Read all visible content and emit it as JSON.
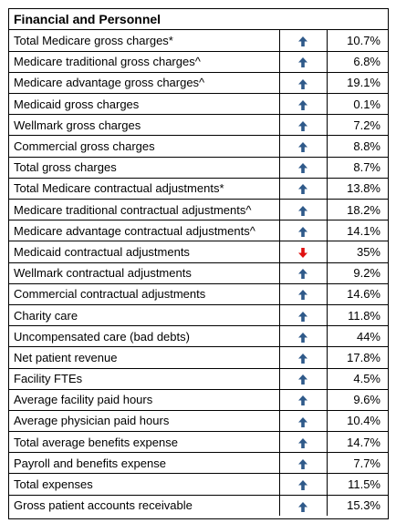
{
  "title": "Financial and Personnel",
  "colors": {
    "up": "#2f5a8a",
    "down": "#e01010"
  },
  "rows": [
    {
      "label": "Total Medicare gross charges*",
      "dir": "up",
      "value": "10.7%"
    },
    {
      "label": "Medicare traditional gross charges^",
      "dir": "up",
      "value": "6.8%"
    },
    {
      "label": "Medicare advantage gross charges^",
      "dir": "up",
      "value": "19.1%"
    },
    {
      "label": "Medicaid gross charges",
      "dir": "up",
      "value": "0.1%"
    },
    {
      "label": "Wellmark gross charges",
      "dir": "up",
      "value": "7.2%"
    },
    {
      "label": "Commercial gross charges",
      "dir": "up",
      "value": "8.8%"
    },
    {
      "label": "Total gross charges",
      "dir": "up",
      "value": "8.7%"
    },
    {
      "label": "Total Medicare contractual adjustments*",
      "dir": "up",
      "value": "13.8%"
    },
    {
      "label": "Medicare traditional contractual adjustments^",
      "dir": "up",
      "value": "18.2%"
    },
    {
      "label": "Medicare advantage contractual adjustments^",
      "dir": "up",
      "value": "14.1%"
    },
    {
      "label": "Medicaid contractual adjustments",
      "dir": "down",
      "value": "35%"
    },
    {
      "label": "Wellmark contractual adjustments",
      "dir": "up",
      "value": "9.2%"
    },
    {
      "label": "Commercial contractual adjustments",
      "dir": "up",
      "value": "14.6%"
    },
    {
      "label": "Charity care",
      "dir": "up",
      "value": "11.8%"
    },
    {
      "label": "Uncompensated care (bad debts)",
      "dir": "up",
      "value": "44%"
    },
    {
      "label": "Net patient revenue",
      "dir": "up",
      "value": "17.8%"
    },
    {
      "label": "Facility FTEs",
      "dir": "up",
      "value": "4.5%"
    },
    {
      "label": "Average facility paid hours",
      "dir": "up",
      "value": "9.6%"
    },
    {
      "label": "Average physician paid hours",
      "dir": "up",
      "value": "10.4%"
    },
    {
      "label": "Total average benefits expense",
      "dir": "up",
      "value": "14.7%"
    },
    {
      "label": "Payroll and benefits expense",
      "dir": "up",
      "value": "7.7%"
    },
    {
      "label": "Total expenses",
      "dir": "up",
      "value": "11.5%"
    },
    {
      "label": "Gross patient accounts receivable",
      "dir": "up",
      "value": "15.3%"
    }
  ]
}
